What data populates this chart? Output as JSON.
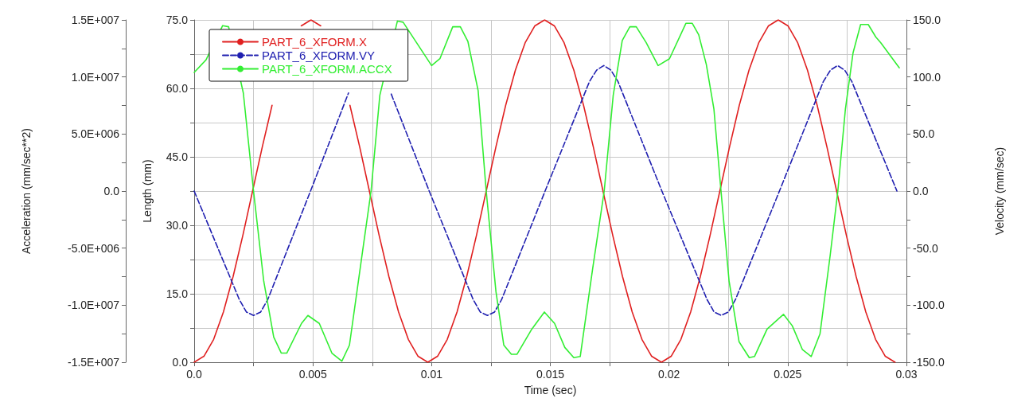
{
  "chart_data": {
    "type": "line",
    "xlabel": "Time (sec)",
    "ylabel": "Length (mm)",
    "y2label": "Velocity (mm/sec)",
    "y3label": "Acceleration (mm/sec**2)",
    "xlim": [
      0,
      0.03
    ],
    "xticks": [
      {
        "value": 0,
        "label": "0.0"
      },
      {
        "value": 0.0025,
        "label": null
      },
      0.005,
      {
        "value": 0.0075,
        "label": null
      },
      0.01,
      {
        "value": 0.0125,
        "label": null
      },
      0.015,
      {
        "value": 0.0175,
        "label": null
      },
      0.02,
      {
        "value": 0.0225,
        "label": null
      },
      0.025,
      {
        "value": 0.0275,
        "label": null
      },
      0.03
    ],
    "ylim": [
      0,
      75
    ],
    "yticks": [
      {
        "value": 0,
        "label": "0.0"
      },
      {
        "value": 7.5,
        "label": null
      },
      {
        "value": 15,
        "label": "15.0"
      },
      {
        "value": 22.5,
        "label": null
      },
      {
        "value": 30,
        "label": "30.0"
      },
      {
        "value": 37.5,
        "label": null
      },
      {
        "value": 45,
        "label": "45.0"
      },
      {
        "value": 52.5,
        "label": null
      },
      {
        "value": 60,
        "label": "60.0"
      },
      {
        "value": 67.5,
        "label": null
      },
      {
        "value": 75,
        "label": "75.0"
      }
    ],
    "y2lim": [
      -150,
      150
    ],
    "y2ticks": [
      {
        "value": -150,
        "label": "-150.0"
      },
      {
        "value": -125,
        "label": null
      },
      {
        "value": -100,
        "label": "-100.0"
      },
      {
        "value": -75,
        "label": null
      },
      {
        "value": -50,
        "label": "-50.0"
      },
      {
        "value": -25,
        "label": null
      },
      {
        "value": 0,
        "label": "0.0"
      },
      {
        "value": 25,
        "label": null
      },
      {
        "value": 50,
        "label": "50.0"
      },
      {
        "value": 75,
        "label": null
      },
      {
        "value": 100,
        "label": "100.0"
      },
      {
        "value": 125,
        "label": null
      },
      {
        "value": 150,
        "label": "150.0"
      }
    ],
    "y3lim": [
      -15000000,
      15000000
    ],
    "y3ticks": [
      {
        "value": -15000000,
        "label": "-1.5E+007"
      },
      {
        "value": -12500000,
        "label": null
      },
      {
        "value": -10000000,
        "label": "-1.0E+007"
      },
      {
        "value": -7500000,
        "label": null
      },
      {
        "value": -5000000,
        "label": "-5.0E+006"
      },
      {
        "value": -2500000,
        "label": null
      },
      {
        "value": 0,
        "label": "0.0"
      },
      {
        "value": 2500000,
        "label": null
      },
      {
        "value": 5000000,
        "label": "5.0E+006"
      },
      {
        "value": 7500000,
        "label": null
      },
      {
        "value": 10000000,
        "label": "1.0E+007"
      },
      {
        "value": 12500000,
        "label": null
      },
      {
        "value": 15000000,
        "label": "1.5E+007"
      }
    ],
    "grid": true,
    "legend": "top left",
    "marker": "none",
    "series": [
      {
        "name": "PART_6_XFORM.X",
        "color": "#e02020",
        "line_style": "solid",
        "x": [
          0,
          0.00041,
          0.00082,
          0.00123,
          0.00164,
          0.00205,
          0.00246,
          0.00287,
          0.00328,
          0.00369,
          0.0041,
          0.00451,
          0.00492,
          0.00533,
          0.00574,
          0.00615,
          0.00656,
          0.00697,
          0.00738,
          0.00779,
          0.0082,
          0.00861,
          0.00902,
          0.00943,
          0.00984,
          0.01025,
          0.01066,
          0.01107,
          0.01148,
          0.01189,
          0.0123,
          0.01271,
          0.01312,
          0.01353,
          0.01394,
          0.01435,
          0.01476,
          0.01517,
          0.01558,
          0.01599,
          0.0164,
          0.01681,
          0.01722,
          0.01763,
          0.01804,
          0.01845,
          0.01886,
          0.01927,
          0.01968,
          0.02009,
          0.0205,
          0.02091,
          0.02132,
          0.02173,
          0.02214,
          0.02255,
          0.02296,
          0.02337,
          0.02378,
          0.02419,
          0.0246,
          0.02501,
          0.02542,
          0.02583,
          0.02624,
          0.02665,
          0.02706,
          0.02747,
          0.02788,
          0.02829,
          0.0287,
          0.02911,
          0.02952
        ],
        "values": [
          0,
          1.3,
          5.0,
          11.0,
          18.8,
          27.8,
          37.5,
          47.2,
          56.3,
          null,
          null,
          73.7,
          75,
          73.7,
          null,
          null,
          56.3,
          47.2,
          37.5,
          27.8,
          18.8,
          11.0,
          5.0,
          1.3,
          0,
          1.3,
          5.0,
          11.0,
          18.8,
          27.8,
          37.5,
          47.2,
          56.3,
          64.0,
          70.0,
          73.7,
          75,
          73.7,
          70.0,
          64.0,
          56.3,
          47.2,
          37.5,
          27.8,
          18.8,
          11.0,
          5.0,
          1.3,
          0,
          1.3,
          5.0,
          11.0,
          18.8,
          27.8,
          37.5,
          47.2,
          56.3,
          64.0,
          70.0,
          73.7,
          75,
          73.7,
          70.0,
          64.0,
          56.3,
          47.2,
          37.5,
          27.8,
          18.8,
          11.0,
          5.0,
          1.3,
          0
        ]
      },
      {
        "name": "PART_6_XFORM.VY",
        "color": "#2020b0",
        "line_style": "dashed",
        "axis": "y2",
        "x": [
          0,
          0.0019,
          0.0022,
          0.0025,
          0.0028,
          0.0031,
          0.0049,
          0.0065,
          0.0071,
          0.0074,
          0.0077,
          0.0083,
          0.0099,
          0.01175,
          0.01205,
          0.01235,
          0.01265,
          0.01295,
          0.01478,
          0.01665,
          0.01695,
          0.01725,
          0.01755,
          0.01785,
          0.0197,
          0.0216,
          0.0219,
          0.0222,
          0.0225,
          0.0228,
          0.02465,
          0.0265,
          0.0268,
          0.0271,
          0.0274,
          0.0277,
          0.0296
        ],
        "values": [
          0,
          -95,
          -106,
          -109,
          -106,
          -95,
          0,
          86,
          null,
          null,
          null,
          85,
          0,
          -95,
          -106,
          -109,
          -106,
          -95,
          0,
          96,
          106,
          110,
          106,
          96,
          0,
          -95,
          -106,
          -109,
          -106,
          -95,
          0,
          96,
          106,
          110,
          106,
          96,
          0
        ]
      },
      {
        "name": "PART_6_XFORM.ACCX",
        "color": "#33ee33",
        "line_style": "solid",
        "axis": "y3",
        "x": [
          0,
          0.0005,
          0.0012,
          0.00145,
          0.00207,
          0.0025,
          0.00293,
          0.00335,
          0.00367,
          0.0039,
          0.00452,
          0.00479,
          0.00527,
          0.0058,
          0.00622,
          0.00654,
          0.00707,
          0.00745,
          0.00782,
          0.00856,
          0.0088,
          0.01,
          0.01035,
          0.01089,
          0.01121,
          0.01153,
          0.01196,
          0.0123,
          0.01271,
          0.01304,
          0.01336,
          0.0136,
          0.01422,
          0.01475,
          0.01518,
          0.01561,
          0.01599,
          0.01626,
          0.01679,
          0.01727,
          0.01765,
          0.01803,
          0.01835,
          0.01862,
          0.01904,
          0.01954,
          0.02002,
          0.02071,
          0.02098,
          0.02125,
          0.02157,
          0.02189,
          0.02219,
          0.02253,
          0.02295,
          0.02338,
          0.0236,
          0.02413,
          0.02482,
          0.02519,
          0.02562,
          0.02599,
          0.02636,
          0.02679,
          0.02711,
          0.02743,
          0.02775,
          0.02807,
          0.02839,
          0.02871,
          0.02892,
          0.0297
        ],
        "values": [
          10400000,
          11500000,
          14500000,
          14400000,
          8600000,
          0,
          -7900000,
          -12800000,
          -14200000,
          -14200000,
          -11600000,
          -10900000,
          -11600000,
          -14200000,
          -14900000,
          -13500000,
          -5600000,
          0,
          8400000,
          14900000,
          14800000,
          11000000,
          11600000,
          14400000,
          14400000,
          13100000,
          8800000,
          0,
          -8800000,
          -13500000,
          -14300000,
          -14300000,
          -12100000,
          -10600000,
          -11600000,
          -13700000,
          -14600000,
          -14500000,
          -6700000,
          0,
          8400000,
          13200000,
          14400000,
          14400000,
          13000000,
          11000000,
          11600000,
          14700000,
          14700000,
          13700000,
          11100000,
          7200000,
          0,
          -7900000,
          -13200000,
          -14600000,
          -14500000,
          -12100000,
          -10800000,
          -11800000,
          -13900000,
          -14500000,
          -12500000,
          -5600000,
          0,
          7200000,
          12100000,
          14600000,
          14600000,
          13500000,
          13000000,
          10800000
        ]
      }
    ]
  }
}
